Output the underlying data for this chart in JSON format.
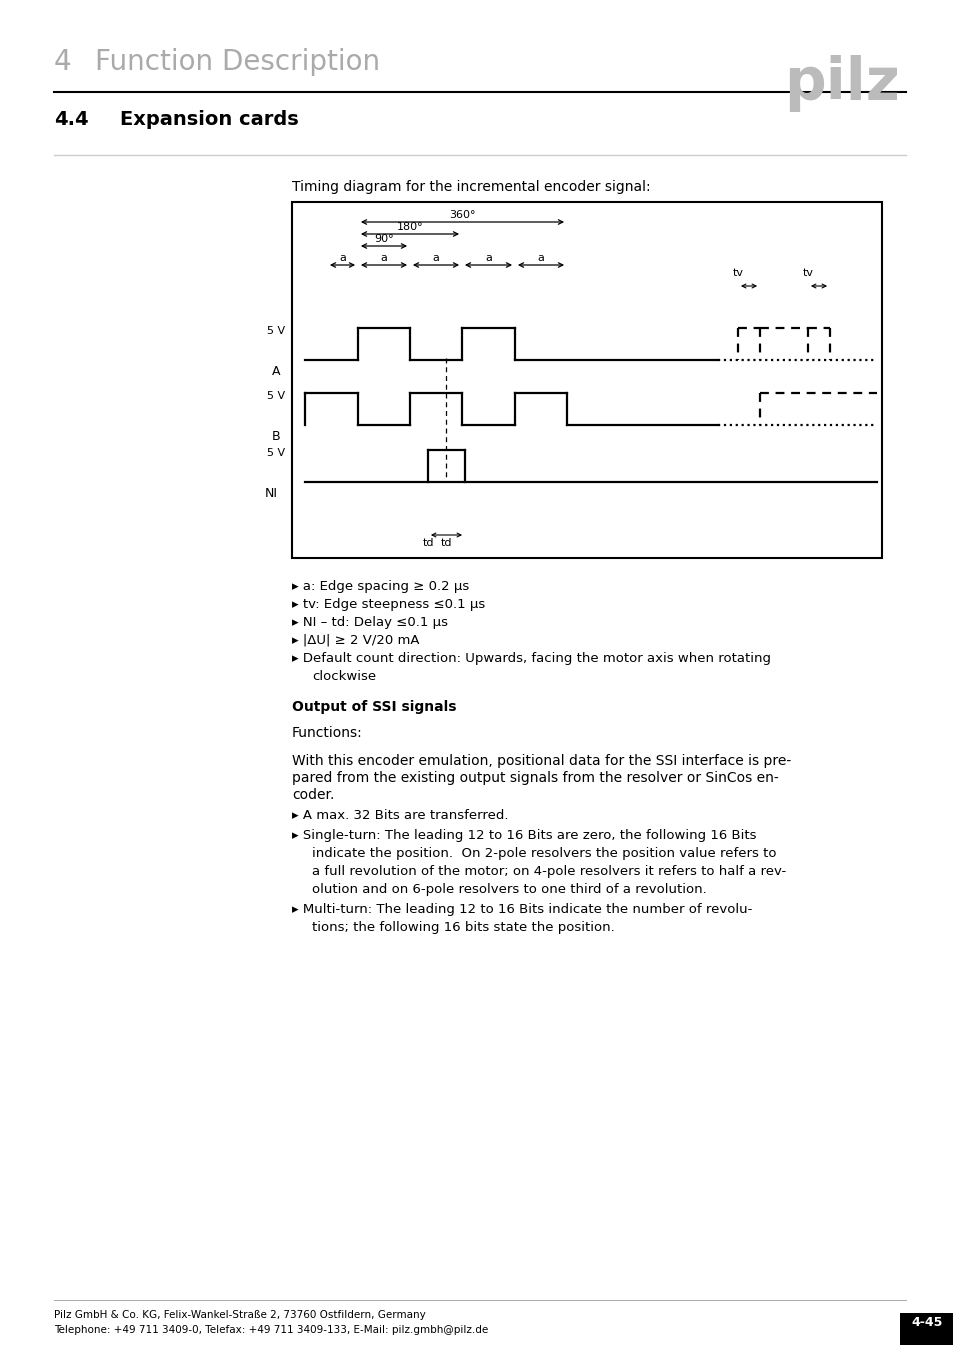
{
  "page_title_number": "4",
  "page_title_text": "Function Description",
  "section_number": "4.4",
  "section_title": "Expansion cards",
  "timing_diagram_caption": "Timing diagram for the incremental encoder signal:",
  "bullet_points": [
    "a: Edge spacing ≥ 0.2 μs",
    "tv: Edge steepness ≤0.1 μs",
    "NI – td: Delay ≤0.1 μs",
    "|ΔU| ≥ 2 V/20 mA",
    "Default count direction: Upwards, facing the motor axis when rotating\n    clockwise"
  ],
  "output_heading": "Output of SSI signals",
  "functions_label": "Functions:",
  "body_text1": "With this encoder emulation, positional data for the SSI interface is pre-\npared from the existing output signals from the resolver or SinCos en-\ncoder.",
  "body_bullets": [
    "A max. 32 Bits are transferred.",
    "Single-turn: The leading 12 to 16 Bits are zero, the following 16 Bits\n    indicate the position.  On 2-pole resolvers the position value refers to\n    a full revolution of the motor; on 4-pole resolvers it refers to half a rev-\n    olution and on 6-pole resolvers to one third of a revolution.",
    "Multi-turn: The leading 12 to 16 Bits indicate the number of revolu-\n    tions; the following 16 bits state the position."
  ],
  "footer_left1": "Pilz GmbH & Co. KG, Felix-Wankel-Straße 2, 73760 Ostfildern, Germany",
  "footer_left2": "Telephone: +49 711 3409-0, Telefax: +49 711 3409-133, E-Mail: pilz.gmbh@pilz.de",
  "footer_right": "4-45",
  "bg_color": "#ffffff"
}
